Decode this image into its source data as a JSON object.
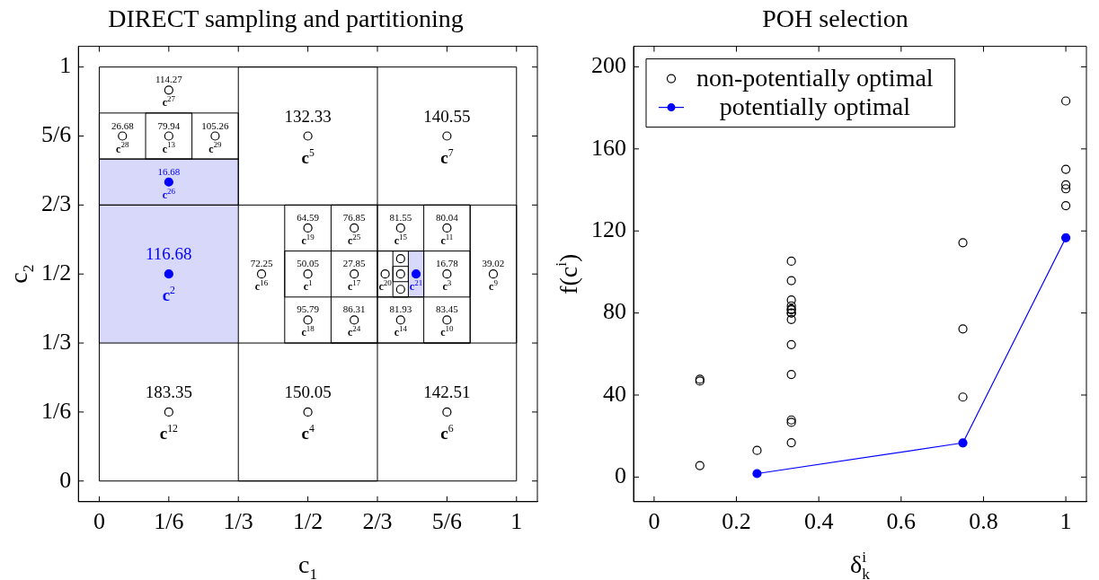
{
  "chart_data": [
    {
      "type": "scatter",
      "title": "DIRECT sampling and partitioning",
      "xlabel": "c$_{1}$",
      "ylabel": "c$_{2}$",
      "xlim": [
        -0.05,
        1.05
      ],
      "ylim": [
        -0.05,
        1.05
      ],
      "xticks": [
        0,
        {
          "value": 0.16667,
          "label": "1/6"
        },
        {
          "value": 0.33333,
          "label": "1/3"
        },
        {
          "value": 0.5,
          "label": "1/2"
        },
        {
          "value": 0.66667,
          "label": "2/3"
        },
        {
          "value": 0.83333,
          "label": "5/6"
        },
        1
      ],
      "yticks": [
        0,
        {
          "value": 0.16667,
          "label": "1/6"
        },
        {
          "value": 0.33333,
          "label": "1/3"
        },
        {
          "value": 0.5,
          "label": "1/2"
        },
        {
          "value": 0.66667,
          "label": "2/3"
        },
        {
          "value": 0.83333,
          "label": "5/6"
        },
        1
      ],
      "grid": false,
      "legend": false,
      "marker": "circle",
      "series": [
        {
          "color": "#000000",
          "x": [
            0.1667,
            0.0556,
            0.1667,
            0.2778,
            0.5,
            0.8333,
            0.1667,
            0.5,
            0.8333,
            0.3889,
            0.5,
            0.6111,
            0.7222,
            0.8333,
            0.5,
            0.6111,
            0.6852,
            0.7222,
            0.7222,
            0.7222,
            0.8333,
            0.9444,
            0.5,
            0.6111,
            0.7222,
            0.8333
          ],
          "values": [
            0.9444,
            0.8333,
            0.8333,
            0.8333,
            0.8333,
            0.8333,
            0.1667,
            0.1667,
            0.1667,
            0.5,
            0.6111,
            0.6111,
            0.6111,
            0.6111,
            0.5,
            0.5,
            0.5,
            0.537,
            0.5,
            0.463,
            0.5,
            0.5,
            0.3889,
            0.3889,
            0.3889,
            0.3889
          ]
        },
        {
          "color": "#0000ff",
          "x": [
            0.1667,
            0.1667,
            0.7593
          ],
          "values": [
            0.7222,
            0.5,
            0.5
          ]
        }
      ],
      "annotations": [
        {
          "text": "114.27",
          "x": 0.1667,
          "y": 0.9444
        },
        {
          "text": "c$^{27}$",
          "x": 0.1667,
          "y": 0.9444
        },
        {
          "text": "26.68",
          "x": 0.0556,
          "y": 0.8333
        },
        {
          "text": "c$^{28}$",
          "x": 0.0556,
          "y": 0.8333
        },
        {
          "text": "79.94",
          "x": 0.1667,
          "y": 0.8333
        },
        {
          "text": "c$^{13}$",
          "x": 0.1667,
          "y": 0.8333
        },
        {
          "text": "105.26",
          "x": 0.2778,
          "y": 0.8333
        },
        {
          "text": "c$^{29}$",
          "x": 0.2778,
          "y": 0.8333
        },
        {
          "text": "16.68",
          "x": 0.1667,
          "y": 0.7222
        },
        {
          "text": "c$^{26}$",
          "x": 0.1667,
          "y": 0.7222
        },
        {
          "text": "132.33",
          "x": 0.5,
          "y": 0.8333
        },
        {
          "text": "c$^{5}$",
          "x": 0.5,
          "y": 0.8333
        },
        {
          "text": "140.55",
          "x": 0.8333,
          "y": 0.8333
        },
        {
          "text": "c$^{7}$",
          "x": 0.8333,
          "y": 0.8333
        },
        {
          "text": "116.68",
          "x": 0.1667,
          "y": 0.5
        },
        {
          "text": "c$^{2}$",
          "x": 0.1667,
          "y": 0.5
        },
        {
          "text": "183.35",
          "x": 0.1667,
          "y": 0.1667
        },
        {
          "text": "c$^{12}$",
          "x": 0.1667,
          "y": 0.1667
        },
        {
          "text": "150.05",
          "x": 0.5,
          "y": 0.1667
        },
        {
          "text": "c$^{4}$",
          "x": 0.5,
          "y": 0.1667
        },
        {
          "text": "142.51",
          "x": 0.8333,
          "y": 0.1667
        },
        {
          "text": "c$^{6}$",
          "x": 0.8333,
          "y": 0.1667
        },
        {
          "text": "72.25",
          "x": 0.3889,
          "y": 0.5
        },
        {
          "text": "c$^{16}$",
          "x": 0.3889,
          "y": 0.5
        },
        {
          "text": "64.59",
          "x": 0.5,
          "y": 0.6111
        },
        {
          "text": "c$^{19}$",
          "x": 0.5,
          "y": 0.6111
        },
        {
          "text": "76.85",
          "x": 0.6111,
          "y": 0.6111
        },
        {
          "text": "c$^{25}$",
          "x": 0.6111,
          "y": 0.6111
        },
        {
          "text": "81.55",
          "x": 0.7222,
          "y": 0.6111
        },
        {
          "text": "c$^{15}$",
          "x": 0.7222,
          "y": 0.6111
        },
        {
          "text": "80.04",
          "x": 0.8333,
          "y": 0.6111
        },
        {
          "text": "c$^{11}$",
          "x": 0.8333,
          "y": 0.6111
        },
        {
          "text": "50.05",
          "x": 0.5,
          "y": 0.5
        },
        {
          "text": "c$^{1}$",
          "x": 0.5,
          "y": 0.5
        },
        {
          "text": "27.85",
          "x": 0.6111,
          "y": 0.5
        },
        {
          "text": "c$^{17}$",
          "x": 0.6111,
          "y": 0.5
        },
        {
          "text": "c$^{20}$",
          "x": 0.6852,
          "y": 0.5
        },
        {
          "text": "c$^{21}$",
          "x": 0.7593,
          "y": 0.5
        },
        {
          "text": "16.78",
          "x": 0.8333,
          "y": 0.5
        },
        {
          "text": "c$^{3}$",
          "x": 0.8333,
          "y": 0.5
        },
        {
          "text": "39.02",
          "x": 0.9444,
          "y": 0.5
        },
        {
          "text": "c$^{9}$",
          "x": 0.9444,
          "y": 0.5
        },
        {
          "text": "95.79",
          "x": 0.5,
          "y": 0.3889
        },
        {
          "text": "c$^{18}$",
          "x": 0.5,
          "y": 0.3889
        },
        {
          "text": "86.31",
          "x": 0.6111,
          "y": 0.3889
        },
        {
          "text": "c$^{24}$",
          "x": 0.6111,
          "y": 0.3889
        },
        {
          "text": "81.93",
          "x": 0.7222,
          "y": 0.3889
        },
        {
          "text": "c$^{14}$",
          "x": 0.7222,
          "y": 0.3889
        },
        {
          "text": "83.45",
          "x": 0.8333,
          "y": 0.3889
        },
        {
          "text": "c$^{10}$",
          "x": 0.8333,
          "y": 0.3889
        }
      ]
    },
    {
      "type": "scatter",
      "title": "POH selection",
      "xlabel": "δ$_{k}$$^{i}$",
      "ylabel": "f(c$^{i}$)",
      "xlim": [
        -0.05,
        1.05
      ],
      "ylim": [
        -12,
        210
      ],
      "xticks": [
        0,
        0.2,
        0.4,
        0.6,
        0.8,
        1
      ],
      "yticks": [
        0,
        40,
        80,
        120,
        160,
        200
      ],
      "grid": false,
      "legend": "top left",
      "marker": "circle",
      "series": [
        {
          "name": "non-potentially optimal",
          "color": "#000000",
          "x": [
            0.1111,
            0.1111,
            0.1111,
            0.25,
            0.3333,
            0.3333,
            0.3333,
            0.3333,
            0.3333,
            0.3333,
            0.3333,
            0.3333,
            0.3333,
            0.3333,
            0.3333,
            0.3333,
            0.3333,
            0.3333,
            0.75,
            0.75,
            0.75,
            1,
            1,
            1,
            1,
            1
          ],
          "values": [
            47.7,
            46.8,
            5.6,
            13,
            105.26,
            95.79,
            86.31,
            83.45,
            81.93,
            81.55,
            80.04,
            79.94,
            76.85,
            64.59,
            50.05,
            27.85,
            26.68,
            16.78,
            114.27,
            72.25,
            39.02,
            183.35,
            150.05,
            142.51,
            140.55,
            132.33
          ]
        },
        {
          "name": "potentially optimal",
          "type": "line",
          "color": "#0000ff",
          "x": [
            0.25,
            0.75,
            1
          ],
          "values": [
            1.7,
            16.68,
            116.68
          ]
        }
      ]
    }
  ]
}
